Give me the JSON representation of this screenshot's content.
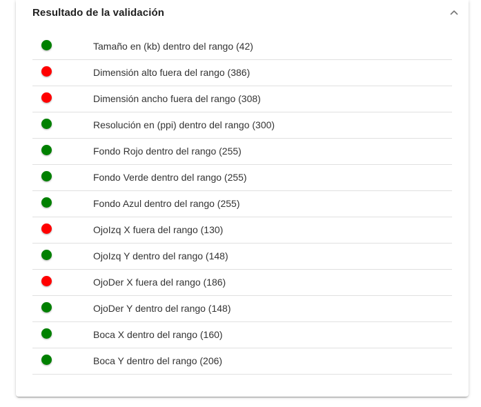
{
  "panel": {
    "title": "Resultado de la validación",
    "expand_icon": "chevron-up-icon"
  },
  "colors": {
    "ok": "#008000",
    "fail": "#ff0000"
  },
  "results": [
    {
      "status": "ok",
      "label": "Tamaño en (kb) dentro del rango (42)"
    },
    {
      "status": "fail",
      "label": "Dimensión alto fuera del rango (386)"
    },
    {
      "status": "fail",
      "label": "Dimensión ancho fuera del rango (308)"
    },
    {
      "status": "ok",
      "label": "Resolución en (ppi) dentro del rango (300)"
    },
    {
      "status": "ok",
      "label": "Fondo Rojo dentro del rango (255)"
    },
    {
      "status": "ok",
      "label": "Fondo Verde dentro del rango (255)"
    },
    {
      "status": "ok",
      "label": "Fondo Azul dentro del rango (255)"
    },
    {
      "status": "fail",
      "label": "OjoIzq X fuera del rango (130)"
    },
    {
      "status": "ok",
      "label": "OjoIzq Y dentro del rango (148)"
    },
    {
      "status": "fail",
      "label": "OjoDer X fuera del rango (186)"
    },
    {
      "status": "ok",
      "label": "OjoDer Y dentro del rango (148)"
    },
    {
      "status": "ok",
      "label": "Boca X dentro del rango (160)"
    },
    {
      "status": "ok",
      "label": "Boca Y dentro del rango (206)"
    }
  ]
}
